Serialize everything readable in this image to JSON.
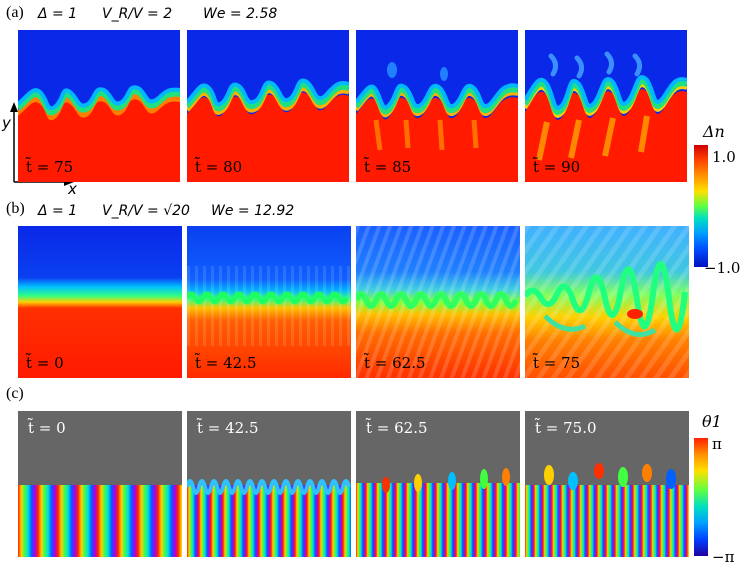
{
  "panels": [
    {
      "label": "(a)",
      "params": [
        "Δ = 1",
        "V_R/V = 2",
        "We = 2.58"
      ],
      "times": [
        "t̃ = 75",
        "t̃ = 80",
        "t̃ = 85",
        "t̃ = 90"
      ]
    },
    {
      "label": "(b)",
      "params": [
        "Δ = 1",
        "V_R/V = √20",
        "We = 12.92"
      ],
      "times": [
        "t̃ = 0",
        "t̃ = 42.5",
        "t̃ = 62.5",
        "t̃ = 75"
      ]
    },
    {
      "label": "(c)",
      "times": [
        "t̃ = 0",
        "t̃ = 42.5",
        "t̃ = 62.5",
        "t̃ = 75.0"
      ]
    }
  ],
  "axes": {
    "y": "y",
    "x": "x"
  },
  "colorbar_dn": {
    "title": "Δn",
    "max": "1.0",
    "min": "−1.0"
  },
  "colorbar_theta": {
    "title": "θ1",
    "max": "π",
    "min": "−π"
  },
  "colors": {
    "blue": "#1030e0",
    "red": "#ee1010",
    "gray": "#666666"
  }
}
